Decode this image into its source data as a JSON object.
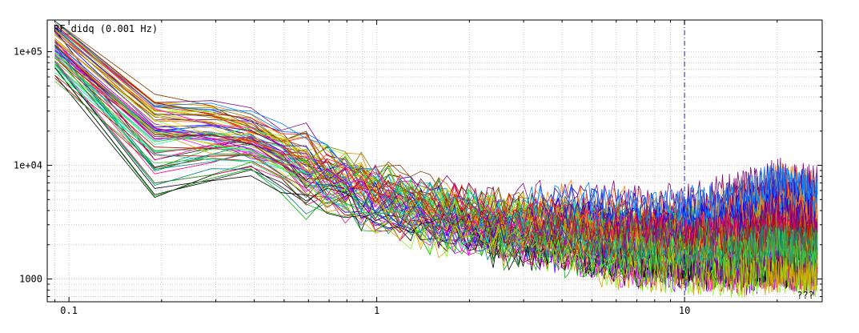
{
  "chart_data": {
    "type": "line",
    "title": "RF_didq (0.001 Hz)",
    "corner_label": "???",
    "x_scale": "log",
    "y_scale": "log",
    "xlim": [
      0.085,
      28
    ],
    "ylim": [
      630,
      190000
    ],
    "x_ticks": [
      {
        "value": 0.1,
        "label": "0.1"
      },
      {
        "value": 1,
        "label": "1"
      },
      {
        "value": 10,
        "label": "10"
      }
    ],
    "y_ticks": [
      {
        "value": 1000,
        "label": "1000"
      },
      {
        "value": 10000,
        "label": "1e+04"
      },
      {
        "value": 100000,
        "label": "1e+05"
      }
    ],
    "grid": true,
    "marker_line_x": 10,
    "colors": [
      "#ff0000",
      "#00b000",
      "#0000ff",
      "#ff00ff",
      "#00d0d0",
      "#ffd000",
      "#000000",
      "#ff8000",
      "#8000ff",
      "#00ff80",
      "#804000",
      "#ff0080",
      "#0080ff",
      "#80ff00",
      "#c00000",
      "#808000",
      "#008080",
      "#800080",
      "#e0a000",
      "#40c040"
    ],
    "representative_series": [
      {
        "x": [
          0.09,
          0.2,
          0.35,
          0.6,
          1,
          1.5,
          2.5,
          4,
          6,
          10,
          15,
          20,
          27
        ],
        "y": [
          140000,
          23000,
          20000,
          9500,
          5500,
          4000,
          3000,
          2500,
          2200,
          2000,
          2000,
          1900,
          1900
        ]
      },
      {
        "x": [
          0.09,
          0.2,
          0.35,
          0.6,
          1,
          1.5,
          2.5,
          4,
          6,
          10,
          15,
          20,
          27
        ],
        "y": [
          95000,
          6500,
          14000,
          7000,
          4800,
          3500,
          2600,
          2200,
          1900,
          1800,
          1700,
          1800,
          1700
        ]
      },
      {
        "x": [
          0.09,
          0.2,
          0.35,
          0.6,
          1,
          1.5,
          2.5,
          4,
          6,
          10,
          15,
          20,
          27
        ],
        "y": [
          160000,
          25000,
          30000,
          12000,
          6000,
          4500,
          3200,
          4200,
          3800,
          3600,
          4500,
          6000,
          5000
        ]
      },
      {
        "x": [
          0.09,
          0.2,
          0.35,
          0.6,
          1,
          1.5,
          2.5,
          4,
          6,
          10,
          15,
          20,
          27
        ],
        "y": [
          120000,
          20000,
          18000,
          9000,
          4500,
          3000,
          2500,
          2000,
          1500,
          1400,
          1300,
          1400,
          1300
        ]
      },
      {
        "x": [
          0.09,
          0.2,
          0.35,
          0.6,
          1,
          1.5,
          2.5,
          4,
          6,
          10,
          15,
          20,
          27
        ],
        "y": [
          80000,
          12000,
          16000,
          8000,
          5000,
          3800,
          2800,
          2300,
          2000,
          2100,
          2000,
          2600,
          2000
        ]
      }
    ]
  }
}
